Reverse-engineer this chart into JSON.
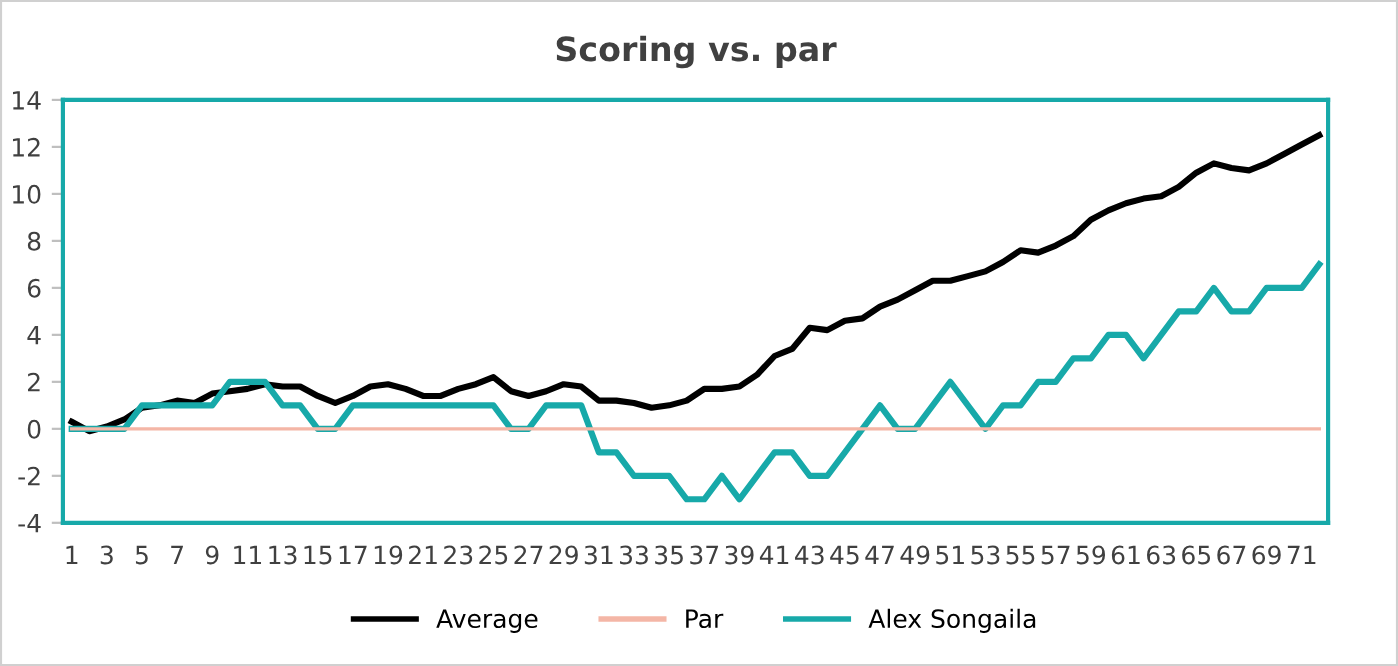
{
  "chart_data": {
    "type": "line",
    "title": "Scoring vs. par",
    "categories": [
      "1",
      null,
      "3",
      null,
      "5",
      null,
      "7",
      null,
      "9",
      null,
      "11",
      null,
      "13",
      null,
      "15",
      null,
      "17",
      null,
      "19",
      null,
      "21",
      null,
      "23",
      null,
      "25",
      null,
      "27",
      null,
      "29",
      null,
      "31",
      null,
      "33",
      null,
      "35",
      null,
      "37",
      null,
      "39",
      null,
      "41",
      null,
      "43",
      null,
      "45",
      null,
      "47",
      null,
      "49",
      null,
      "51",
      null,
      "53",
      null,
      "55",
      null,
      "57",
      null,
      "59",
      null,
      "61",
      null,
      "63",
      null,
      "65",
      null,
      "67",
      null,
      "69",
      null,
      "71",
      null
    ],
    "series": [
      {
        "name": "Average",
        "color": "#000000",
        "values": [
          0.3,
          -0.1,
          0.1,
          0.4,
          0.9,
          1.0,
          1.2,
          1.1,
          1.5,
          1.6,
          1.7,
          1.9,
          1.8,
          1.8,
          1.4,
          1.1,
          1.4,
          1.8,
          1.9,
          1.7,
          1.4,
          1.4,
          1.7,
          1.9,
          2.2,
          1.6,
          1.4,
          1.6,
          1.9,
          1.8,
          1.2,
          1.2,
          1.1,
          0.9,
          1.0,
          1.2,
          1.7,
          1.7,
          1.8,
          2.3,
          3.1,
          3.4,
          4.3,
          4.2,
          4.6,
          4.7,
          5.2,
          5.5,
          5.9,
          6.3,
          6.3,
          6.5,
          6.7,
          7.1,
          7.6,
          7.5,
          7.8,
          8.2,
          8.9,
          9.3,
          9.6,
          9.8,
          9.9,
          10.3,
          10.9,
          11.3,
          11.1,
          11.0,
          11.3,
          11.7,
          12.1,
          12.5
        ]
      },
      {
        "name": "Par",
        "color": "#f4b6a6",
        "values": [
          0,
          0,
          0,
          0,
          0,
          0,
          0,
          0,
          0,
          0,
          0,
          0,
          0,
          0,
          0,
          0,
          0,
          0,
          0,
          0,
          0,
          0,
          0,
          0,
          0,
          0,
          0,
          0,
          0,
          0,
          0,
          0,
          0,
          0,
          0,
          0,
          0,
          0,
          0,
          0,
          0,
          0,
          0,
          0,
          0,
          0,
          0,
          0,
          0,
          0,
          0,
          0,
          0,
          0,
          0,
          0,
          0,
          0,
          0,
          0,
          0,
          0,
          0,
          0,
          0,
          0,
          0,
          0,
          0,
          0,
          0,
          0
        ]
      },
      {
        "name": "Alex Songaila",
        "color": "#17a9a9",
        "values": [
          0,
          0,
          0,
          0,
          1,
          1,
          1,
          1,
          1,
          2,
          2,
          2,
          1,
          1,
          0,
          0,
          1,
          1,
          1,
          1,
          1,
          1,
          1,
          1,
          1,
          0,
          0,
          1,
          1,
          1,
          -1,
          -1,
          -2,
          -2,
          -2,
          -3,
          -3,
          -2,
          -3,
          -2,
          -1,
          -1,
          -2,
          -2,
          -1,
          0,
          1,
          0,
          0,
          1,
          2,
          1,
          0,
          1,
          1,
          2,
          2,
          3,
          3,
          4,
          4,
          3,
          4,
          5,
          5,
          6,
          5,
          5,
          6,
          6,
          6,
          7
        ]
      }
    ],
    "ylim": [
      -4,
      14
    ],
    "yticks": [
      -4,
      -2,
      0,
      2,
      4,
      6,
      8,
      10,
      12,
      14
    ],
    "grid": false,
    "legend": "bottom",
    "marker": "none",
    "line_style": "solid"
  }
}
